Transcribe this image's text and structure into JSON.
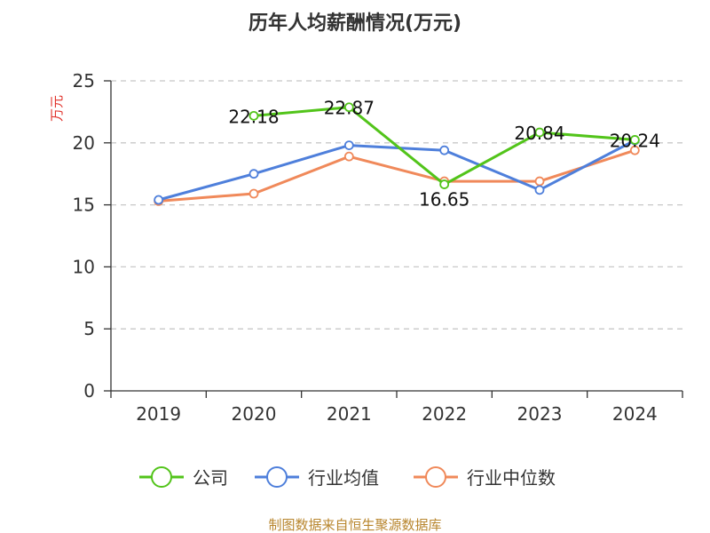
{
  "chart_data": {
    "type": "line",
    "title": "历年人均薪酬情况(万元)",
    "ylabel": "万元",
    "xlabel": "",
    "categories": [
      "2019",
      "2020",
      "2021",
      "2022",
      "2023",
      "2024"
    ],
    "ylim": [
      0,
      25
    ],
    "yticks": [
      0,
      5,
      10,
      15,
      20,
      25
    ],
    "grid": true,
    "legend_position": "bottom",
    "series": [
      {
        "name": "公司",
        "color": "#52c41a",
        "values": [
          null,
          22.18,
          22.87,
          16.65,
          20.84,
          20.24
        ],
        "show_labels": true
      },
      {
        "name": "行业均值",
        "color": "#4e7fdb",
        "values": [
          15.4,
          17.5,
          19.8,
          19.4,
          16.2,
          20.2
        ],
        "show_labels": false
      },
      {
        "name": "行业中位数",
        "color": "#f0895a",
        "values": [
          15.3,
          15.9,
          18.9,
          16.9,
          16.9,
          19.4
        ],
        "show_labels": false
      }
    ]
  },
  "footer": {
    "source": "制图数据来自恒生聚源数据库"
  },
  "colors": {
    "ylabel": "#e0312a",
    "source": "#b8862e",
    "grid": "#c8c8c8",
    "axis": "#333333"
  }
}
